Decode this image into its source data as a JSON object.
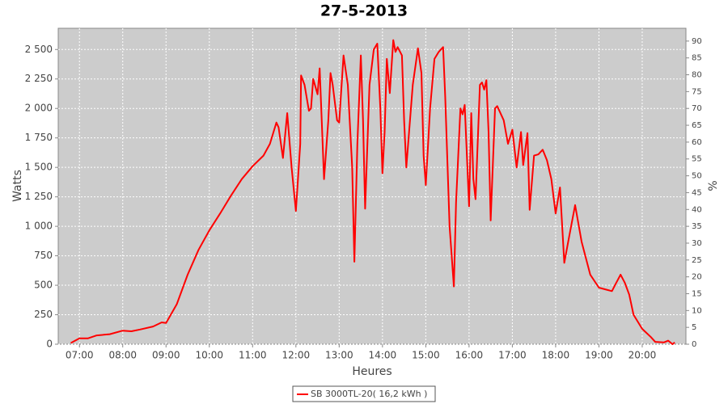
{
  "chart_data": {
    "type": "line",
    "title": "27-5-2013",
    "x_label": "Heures",
    "y_label": "Watts",
    "y2_label": "%",
    "x": [
      6.8,
      7.0,
      7.2,
      7.4,
      7.7,
      8.0,
      8.2,
      8.4,
      8.7,
      8.9,
      9.0,
      9.25,
      9.5,
      9.75,
      10.0,
      10.25,
      10.5,
      10.75,
      11.0,
      11.25,
      11.4,
      11.55,
      11.6,
      11.7,
      11.8,
      11.9,
      12.0,
      12.1,
      12.12,
      12.2,
      12.3,
      12.35,
      12.4,
      12.5,
      12.55,
      12.65,
      12.75,
      12.8,
      12.85,
      12.95,
      13.0,
      13.1,
      13.2,
      13.3,
      13.35,
      13.42,
      13.5,
      13.55,
      13.6,
      13.7,
      13.8,
      13.88,
      13.95,
      14.0,
      14.05,
      14.1,
      14.17,
      14.25,
      14.3,
      14.35,
      14.45,
      14.5,
      14.55,
      14.7,
      14.82,
      14.9,
      14.95,
      15.0,
      15.1,
      15.2,
      15.3,
      15.4,
      15.45,
      15.55,
      15.65,
      15.7,
      15.8,
      15.85,
      15.9,
      16.0,
      16.05,
      16.1,
      16.15,
      16.25,
      16.3,
      16.35,
      16.4,
      16.45,
      16.5,
      16.6,
      16.65,
      16.8,
      16.9,
      17.0,
      17.1,
      17.2,
      17.25,
      17.35,
      17.4,
      17.5,
      17.6,
      17.7,
      17.8,
      17.9,
      18.0,
      18.1,
      18.2,
      18.3,
      18.45,
      18.6,
      18.8,
      19.0,
      19.2,
      19.3,
      19.4,
      19.5,
      19.6,
      19.7,
      19.8,
      20.0,
      20.2,
      20.3,
      20.5,
      20.6,
      20.7,
      20.75
    ],
    "series": [
      {
        "name": "SB 3000TL-20( 16,2 kWh )",
        "color": "#ff0000",
        "values": [
          10,
          50,
          50,
          75,
          85,
          115,
          110,
          125,
          150,
          185,
          180,
          340,
          590,
          800,
          966,
          1110,
          1260,
          1400,
          1510,
          1600,
          1700,
          1880,
          1840,
          1580,
          1960,
          1500,
          1130,
          1700,
          2280,
          2200,
          1980,
          2000,
          2250,
          2120,
          2340,
          1400,
          1900,
          2300,
          2200,
          1900,
          1880,
          2450,
          2200,
          1500,
          700,
          1700,
          2450,
          1900,
          1150,
          2200,
          2500,
          2550,
          2000,
          1450,
          1800,
          2420,
          2130,
          2580,
          2480,
          2520,
          2450,
          1900,
          1500,
          2200,
          2510,
          2300,
          1600,
          1350,
          2000,
          2420,
          2480,
          2520,
          2100,
          1000,
          490,
          1200,
          2000,
          1950,
          2030,
          1170,
          1960,
          1400,
          1230,
          2200,
          2220,
          2160,
          2240,
          1800,
          1050,
          2000,
          2020,
          1900,
          1700,
          1820,
          1500,
          1800,
          1520,
          1790,
          1140,
          1600,
          1610,
          1650,
          1560,
          1400,
          1110,
          1330,
          690,
          890,
          1180,
          870,
          590,
          480,
          460,
          450,
          520,
          590,
          520,
          420,
          250,
          130,
          60,
          20,
          15,
          30,
          0,
          15
        ]
      }
    ],
    "xlim": [
      6.51,
      21.01
    ],
    "xticks": [
      {
        "value": 7,
        "label": "07:00"
      },
      {
        "value": 8,
        "label": "08:00"
      },
      {
        "value": 9,
        "label": "09:00"
      },
      {
        "value": 10,
        "label": "10:00"
      },
      {
        "value": 11,
        "label": "11:00"
      },
      {
        "value": 12,
        "label": "12:00"
      },
      {
        "value": 13,
        "label": "13:00"
      },
      {
        "value": 14,
        "label": "14:00"
      },
      {
        "value": 15,
        "label": "15:00"
      },
      {
        "value": 16,
        "label": "16:00"
      },
      {
        "value": 17,
        "label": "17:00"
      },
      {
        "value": 18,
        "label": "18:00"
      },
      {
        "value": 19,
        "label": "19:00"
      },
      {
        "value": 20,
        "label": "20:00"
      }
    ],
    "ylim": [
      0,
      2680
    ],
    "yticks": [
      0,
      250,
      500,
      750,
      {
        "value": 1000,
        "label": "1 000"
      },
      {
        "value": 1250,
        "label": "1 250"
      },
      {
        "value": 1500,
        "label": "1 500"
      },
      {
        "value": 1750,
        "label": "1 750"
      },
      {
        "value": 2000,
        "label": "2 000"
      },
      {
        "value": 2250,
        "label": "2 250"
      },
      {
        "value": 2500,
        "label": "2 500"
      }
    ],
    "y2lim": [
      0,
      93.8
    ],
    "y2ticks": [
      0,
      5,
      10,
      15,
      20,
      25,
      30,
      35,
      40,
      45,
      50,
      55,
      60,
      65,
      70,
      75,
      80,
      85,
      90
    ],
    "grid": true
  }
}
